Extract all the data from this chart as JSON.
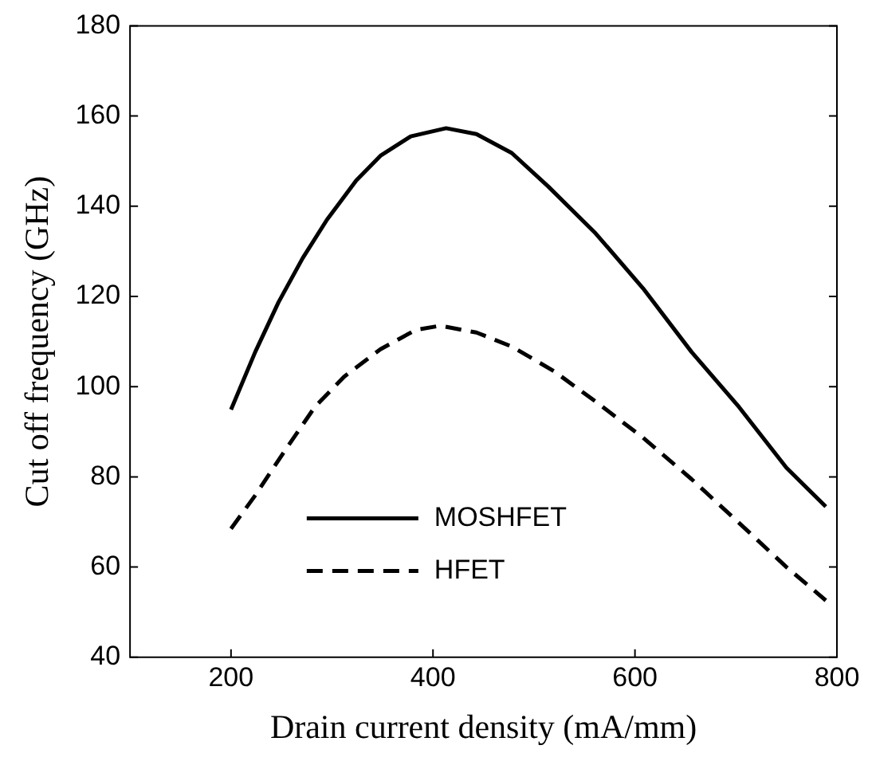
{
  "chart_data": {
    "type": "line",
    "xlabel": "Drain current density (mA/mm)",
    "ylabel": "Cut off frequency (GHz)",
    "xlim": [
      100,
      800
    ],
    "xticks": [
      200,
      400,
      600,
      800
    ],
    "ylim": [
      40,
      180
    ],
    "yticks": [
      40,
      60,
      80,
      100,
      120,
      140,
      160,
      180
    ],
    "grid": false,
    "legend": "bottom",
    "marker": "none",
    "series": [
      {
        "name": "MOSHFET",
        "color": "#000000",
        "line_style": "solid",
        "x": [
          200,
          224,
          247,
          271,
          295,
          324,
          348,
          378,
          413,
          443,
          478,
          514,
          561,
          608,
          656,
          703,
          750,
          789
        ],
        "values": [
          94.9,
          107.7,
          118.7,
          128.5,
          137,
          145.7,
          151.2,
          155.5,
          157.3,
          156,
          151.8,
          144.4,
          134,
          121.8,
          107.7,
          95.5,
          82,
          73.4
        ]
      },
      {
        "name": "HFET",
        "color": "#000000",
        "line_style": "dashed",
        "x": [
          200,
          224,
          253,
          283,
          312,
          348,
          383,
          407,
          443,
          478,
          520,
          561,
          608,
          656,
          703,
          750,
          789
        ],
        "values": [
          68.5,
          75.9,
          85.7,
          95.5,
          102.2,
          108.3,
          112.6,
          113.5,
          112,
          108.9,
          103.4,
          96.7,
          88.7,
          79.5,
          69.8,
          60,
          52.6
        ]
      }
    ]
  }
}
